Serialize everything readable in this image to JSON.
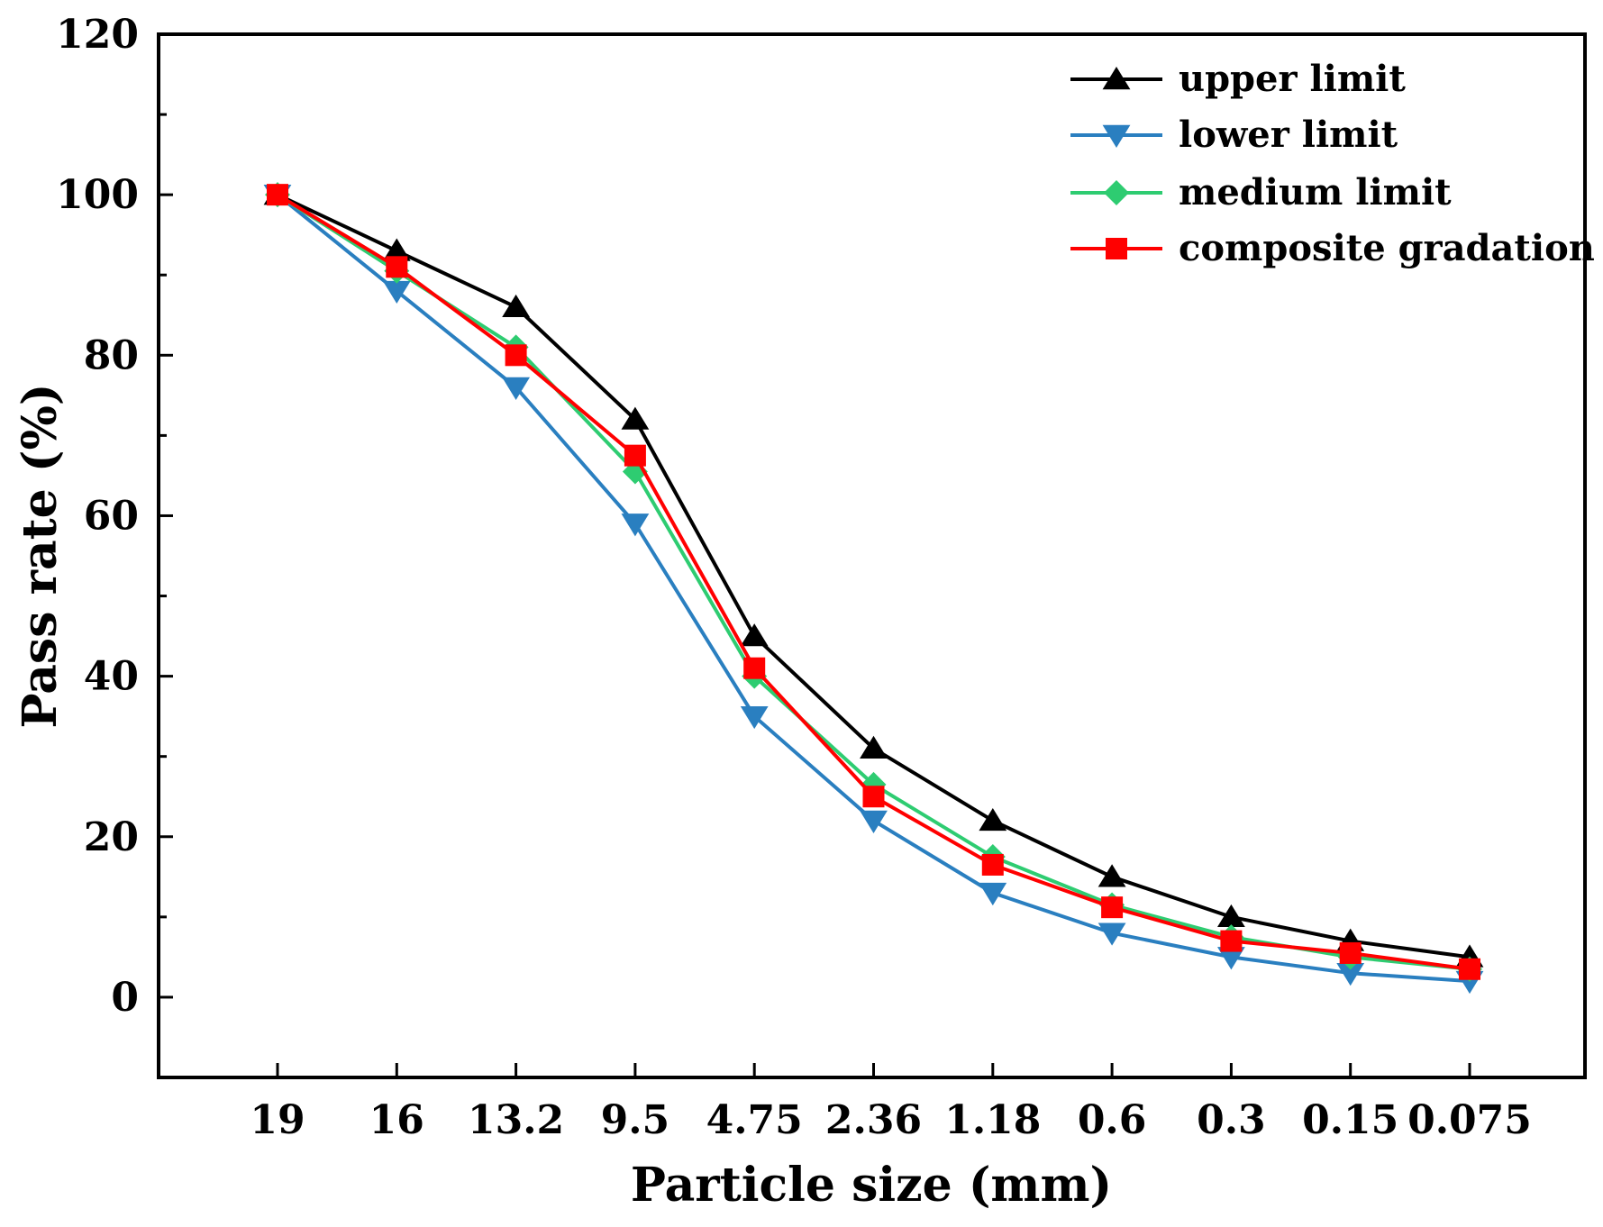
{
  "chart_data": {
    "type": "line",
    "categories": [
      "19",
      "16",
      "13.2",
      "9.5",
      "4.75",
      "2.36",
      "1.18",
      "0.6",
      "0.3",
      "0.15",
      "0.075"
    ],
    "xlabel": "Particle size (mm)",
    "ylabel": "Pass rate (%)",
    "ylim": [
      -10,
      120
    ],
    "yticks": [
      0,
      20,
      40,
      60,
      80,
      100,
      120
    ],
    "ytick_labels": [
      "0",
      "20",
      "40",
      "60",
      "80",
      "100",
      "120"
    ],
    "legend_position": "top-right",
    "series": [
      {
        "name": "upper limit",
        "marker": "triangle-up",
        "color": "#000000",
        "values": [
          100,
          93,
          86,
          72,
          45,
          31,
          22,
          15,
          10,
          7,
          5
        ]
      },
      {
        "name": "lower limit",
        "marker": "triangle-down",
        "color": "#2a7fc0",
        "values": [
          100,
          88,
          76,
          59,
          35,
          22,
          13,
          8,
          5,
          3,
          2
        ]
      },
      {
        "name": "medium limit",
        "marker": "diamond",
        "color": "#2ecc71",
        "values": [
          100,
          90.5,
          81,
          65.5,
          40,
          26.5,
          17.5,
          11.5,
          7.5,
          5,
          3.5
        ]
      },
      {
        "name": "composite gradation",
        "marker": "square",
        "color": "#ff0000",
        "values": [
          100,
          91,
          80,
          67.5,
          41,
          25,
          16.5,
          11.2,
          7,
          5.5,
          3.5
        ]
      }
    ]
  }
}
